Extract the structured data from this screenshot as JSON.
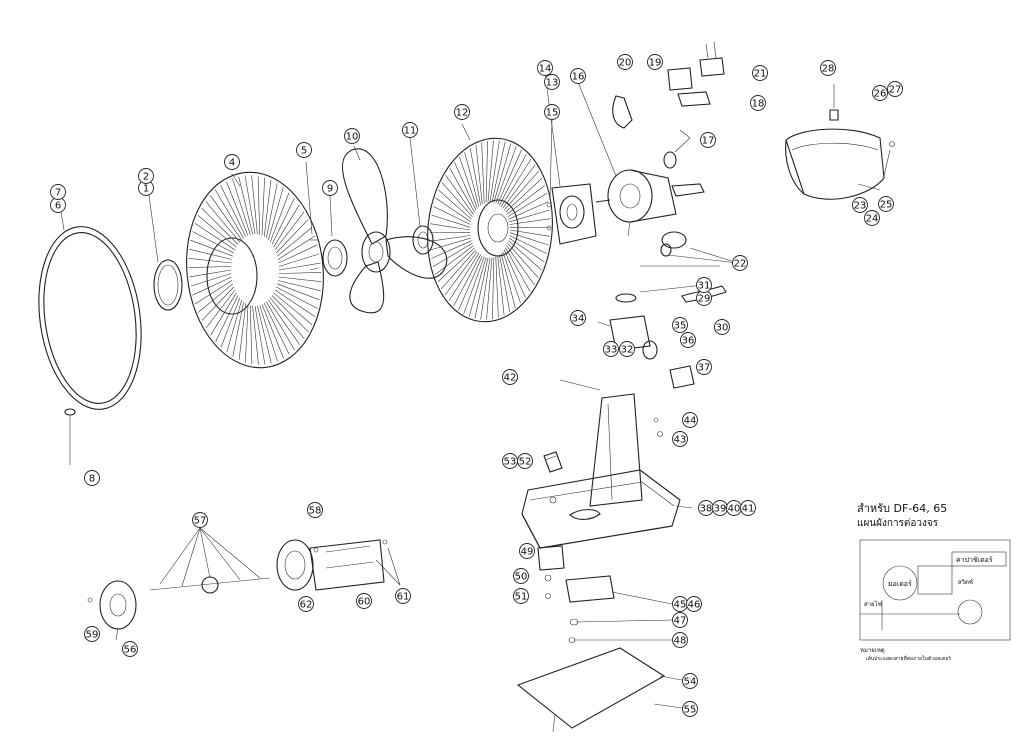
{
  "diagram": {
    "title_note_line1": "สำหรับ DF-64, 65",
    "title_note_line2": "แผนผังการต่อวงจร",
    "circuit_labels": {
      "motor": "มอเตอร์",
      "capacitor": "คาปาซิเตอร์",
      "switch": "สวิตช์",
      "power": "สายไฟ",
      "remark_heading": "หมายเหตุ",
      "remark_text": "เส้นประแสดงสายที่ต่อภายในตัวมอเตอร์"
    },
    "callouts": [
      "1",
      "2",
      "4",
      "5",
      "6",
      "7",
      "8",
      "9",
      "10",
      "11",
      "12",
      "13",
      "14",
      "15",
      "16",
      "17",
      "18",
      "19",
      "20",
      "21",
      "22",
      "23",
      "24",
      "25",
      "26",
      "27",
      "28",
      "29",
      "30",
      "31",
      "32",
      "33",
      "34",
      "35",
      "36",
      "37",
      "38",
      "39",
      "40",
      "41",
      "42",
      "43",
      "44",
      "45",
      "46",
      "47",
      "48",
      "49",
      "50",
      "51",
      "52",
      "53",
      "54",
      "55",
      "56",
      "57",
      "58",
      "59",
      "60",
      "61",
      "62"
    ]
  }
}
